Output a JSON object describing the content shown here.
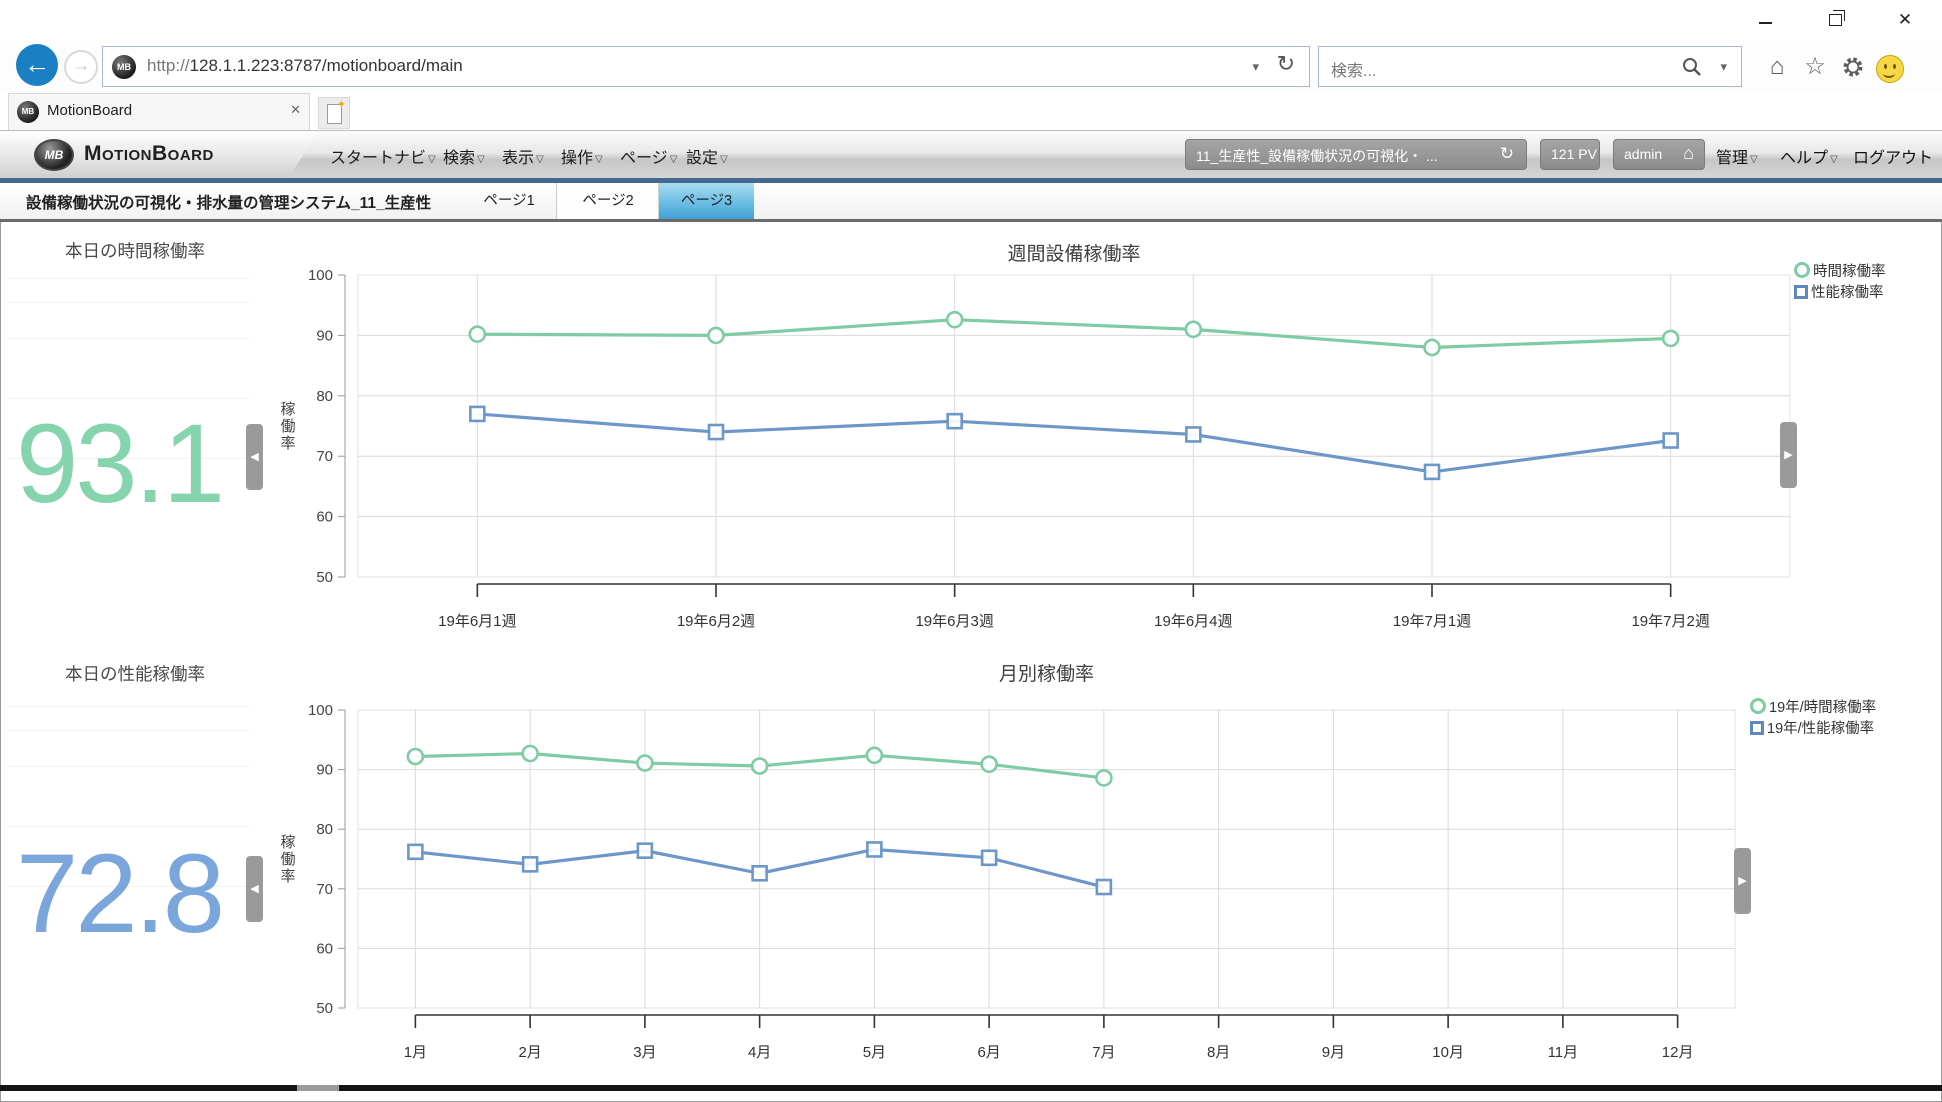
{
  "icons": {
    "back": "←",
    "forward": "→",
    "refresh": "↻",
    "dropdown": "▾",
    "menu_dropdown": "▽",
    "close": "✕",
    "home": "⌂",
    "star": "☆",
    "new_tab_star": "✦",
    "mb_badge": "MB"
  },
  "browser": {
    "url_prefix": "http://",
    "url_host": "128.1.1.223:8787",
    "url_path": "/motionboard/main",
    "search_placeholder": "検索...",
    "tab_title": "MotionBoard"
  },
  "toolbar": {
    "brand_wordmark": "MotionBoard",
    "menus": [
      "スタートナビ",
      "検索",
      "表示",
      "操作",
      "ページ",
      "設定"
    ],
    "board_selector": "11_生産性_設備稼働状況の可視化・ ...",
    "pv_count": "121 PV",
    "user": "admin",
    "admin_menu": "管理",
    "help_menu": "ヘルプ",
    "logout": "ログアウト"
  },
  "page_bar": {
    "board_title": "設備稼働状況の可視化・排水量の管理システム_11_生産性",
    "tabs": [
      {
        "label": "ページ1",
        "active": false
      },
      {
        "label": "ページ2",
        "active": false
      },
      {
        "label": "ページ3",
        "active": true
      }
    ]
  },
  "kpis": [
    {
      "title": "本日の時間稼働率",
      "value": "93.1",
      "color": "#85d4ae"
    },
    {
      "title": "本日の性能稼働率",
      "value": "72.8",
      "color": "#7aa6db"
    }
  ],
  "chart_data": [
    {
      "type": "line",
      "title": "週間設備稼働率",
      "ylabel": "稼働率",
      "ylim": [
        50,
        100
      ],
      "yticks": [
        50,
        60,
        70,
        80,
        90,
        100
      ],
      "grid": true,
      "legend_position": "top-right",
      "categories": [
        "19年6月1週",
        "19年6月2週",
        "19年6月3週",
        "19年6月4週",
        "19年7月1週",
        "19年7月2週"
      ],
      "series": [
        {
          "name": "時間稼働率",
          "marker": "circle",
          "color": "#7ecba4",
          "values": [
            90.2,
            90.0,
            92.6,
            91.0,
            88.0,
            89.5
          ]
        },
        {
          "name": "性能稼働率",
          "marker": "square",
          "color": "#6d96c9",
          "values": [
            77.0,
            74.0,
            75.8,
            73.6,
            67.4,
            72.6
          ]
        }
      ]
    },
    {
      "type": "line",
      "title": "月別稼働率",
      "ylabel": "稼働率",
      "ylim": [
        50,
        100
      ],
      "yticks": [
        50,
        60,
        70,
        80,
        90,
        100
      ],
      "grid": true,
      "legend_position": "top-right",
      "categories": [
        "1月",
        "2月",
        "3月",
        "4月",
        "5月",
        "6月",
        "7月",
        "8月",
        "9月",
        "10月",
        "11月",
        "12月"
      ],
      "series": [
        {
          "name": "19年/時間稼働率",
          "marker": "circle",
          "color": "#7ecba4",
          "values": [
            92.2,
            92.7,
            91.1,
            90.6,
            92.4,
            90.9,
            88.6,
            null,
            null,
            null,
            null,
            null
          ]
        },
        {
          "name": "19年/性能稼働率",
          "marker": "square",
          "color": "#6d96c9",
          "values": [
            76.2,
            74.1,
            76.4,
            72.6,
            76.6,
            75.2,
            70.3,
            null,
            null,
            null,
            null,
            null
          ]
        }
      ]
    }
  ]
}
